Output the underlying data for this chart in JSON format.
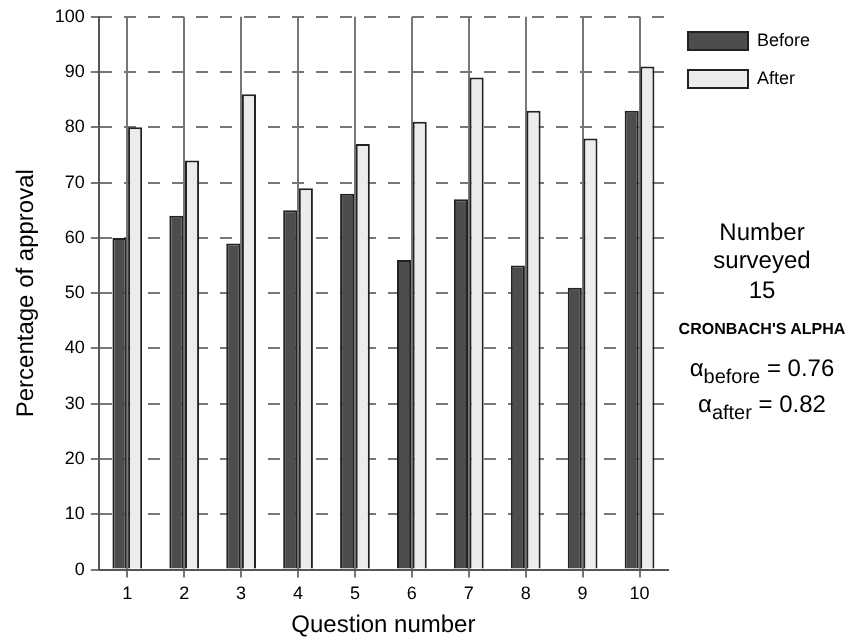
{
  "chart_data": {
    "type": "bar",
    "xlabel": "Question number",
    "ylabel": "Percentage of approval",
    "categories": [
      "1",
      "2",
      "3",
      "4",
      "5",
      "6",
      "7",
      "8",
      "9",
      "10"
    ],
    "series": [
      {
        "name": "Before",
        "color": "#4d4d4d",
        "values": [
          60,
          64,
          59,
          65,
          68,
          56,
          67,
          55,
          51,
          83
        ]
      },
      {
        "name": "After",
        "color": "#ececec",
        "values": [
          80,
          74,
          86,
          69,
          77,
          81,
          89,
          83,
          78,
          91
        ]
      }
    ],
    "ylim": [
      0,
      100
    ],
    "yticks": [
      0,
      10,
      20,
      30,
      40,
      50,
      60,
      70,
      80,
      90,
      100
    ],
    "grid": true,
    "legend": "top right",
    "annotations": [
      "Number surveyed",
      "15",
      "CRONBACH'S ALPHA",
      "α$_{before}$ = 0.76",
      "α$_{after}$ = 0.82"
    ]
  }
}
